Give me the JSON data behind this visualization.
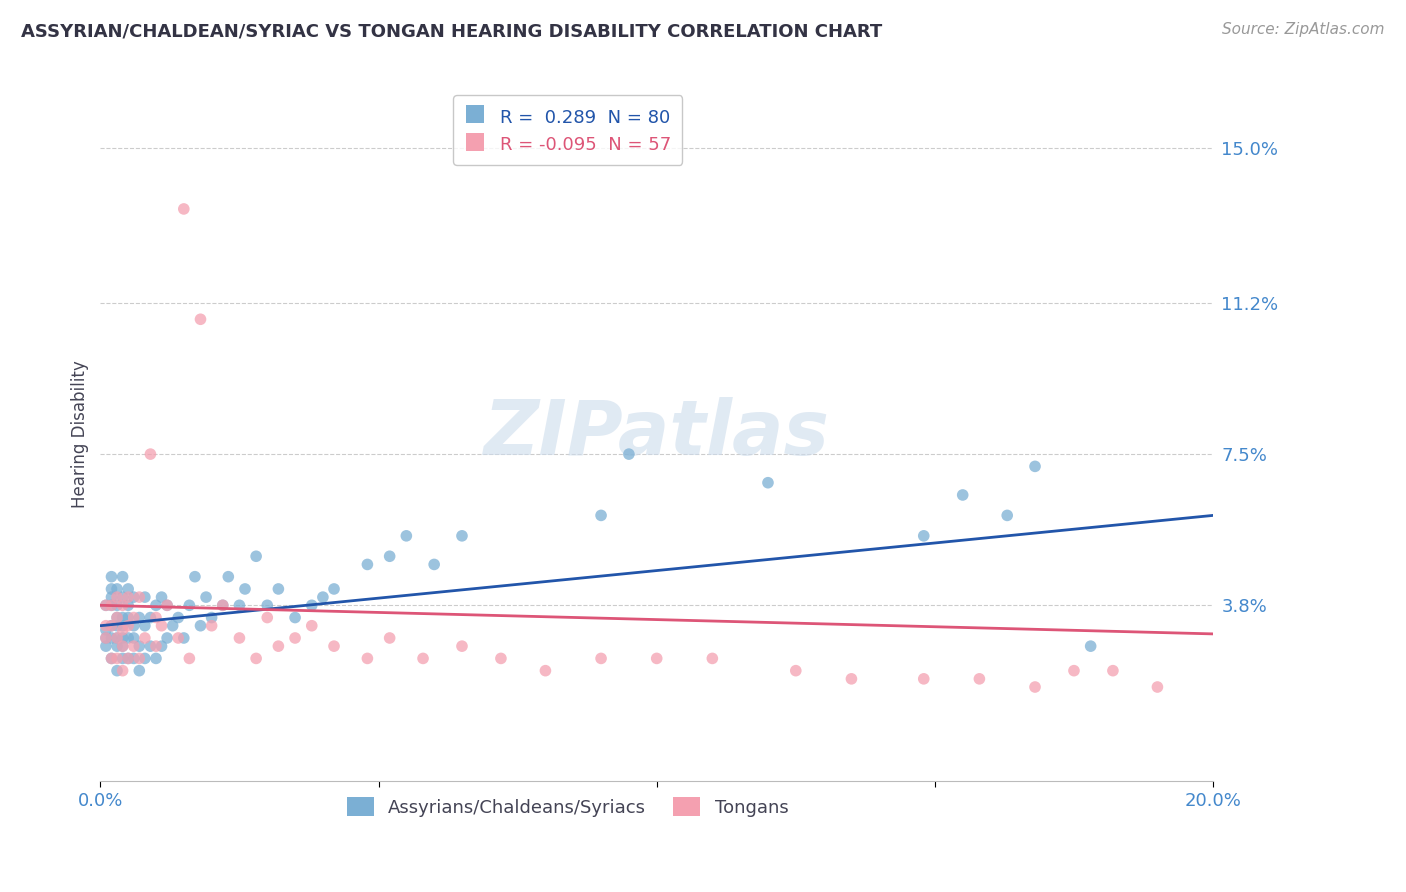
{
  "title": "ASSYRIAN/CHALDEAN/SYRIAC VS TONGAN HEARING DISABILITY CORRELATION CHART",
  "source": "Source: ZipAtlas.com",
  "ylabel": "Hearing Disability",
  "xlim": [
    0.0,
    0.2
  ],
  "ylim": [
    -0.005,
    0.165
  ],
  "ytick_vals": [
    0.038,
    0.075,
    0.112,
    0.15
  ],
  "ytick_labels": [
    "3.8%",
    "7.5%",
    "11.2%",
    "15.0%"
  ],
  "xtick_vals": [
    0.0,
    0.05,
    0.1,
    0.15,
    0.2
  ],
  "xtick_labels": [
    "0.0%",
    "",
    "",
    "",
    "20.0%"
  ],
  "r_assyrian": 0.289,
  "n_assyrian": 80,
  "r_tongan": -0.095,
  "n_tongan": 57,
  "blue_color": "#7bafd4",
  "blue_line_color": "#2255aa",
  "pink_color": "#f4a0b0",
  "pink_line_color": "#dd5577",
  "legend_label_1": "Assyrians/Chaldeans/Syriacs",
  "legend_label_2": "Tongans",
  "watermark": "ZIPatlas",
  "background_color": "#ffffff",
  "grid_color": "#cccccc",
  "title_color": "#333344",
  "axis_label_color": "#444455",
  "tick_label_color": "#4488cc",
  "blue_trend_start": 0.033,
  "blue_trend_end": 0.06,
  "pink_trend_start": 0.038,
  "pink_trend_end": 0.031,
  "assyrian_x": [
    0.001,
    0.001,
    0.001,
    0.001,
    0.002,
    0.002,
    0.002,
    0.002,
    0.002,
    0.002,
    0.002,
    0.003,
    0.003,
    0.003,
    0.003,
    0.003,
    0.003,
    0.003,
    0.004,
    0.004,
    0.004,
    0.004,
    0.004,
    0.004,
    0.004,
    0.005,
    0.005,
    0.005,
    0.005,
    0.005,
    0.006,
    0.006,
    0.006,
    0.006,
    0.007,
    0.007,
    0.007,
    0.008,
    0.008,
    0.008,
    0.009,
    0.009,
    0.01,
    0.01,
    0.011,
    0.011,
    0.012,
    0.012,
    0.013,
    0.014,
    0.015,
    0.016,
    0.017,
    0.018,
    0.019,
    0.02,
    0.022,
    0.023,
    0.025,
    0.026,
    0.028,
    0.03,
    0.032,
    0.035,
    0.038,
    0.04,
    0.042,
    0.048,
    0.052,
    0.055,
    0.06,
    0.065,
    0.09,
    0.095,
    0.12,
    0.148,
    0.155,
    0.163,
    0.168,
    0.178
  ],
  "assyrian_y": [
    0.03,
    0.028,
    0.032,
    0.038,
    0.025,
    0.03,
    0.033,
    0.038,
    0.04,
    0.042,
    0.045,
    0.022,
    0.028,
    0.03,
    0.033,
    0.035,
    0.038,
    0.042,
    0.025,
    0.028,
    0.03,
    0.033,
    0.035,
    0.04,
    0.045,
    0.025,
    0.03,
    0.035,
    0.038,
    0.042,
    0.025,
    0.03,
    0.033,
    0.04,
    0.022,
    0.028,
    0.035,
    0.025,
    0.033,
    0.04,
    0.028,
    0.035,
    0.025,
    0.038,
    0.028,
    0.04,
    0.03,
    0.038,
    0.033,
    0.035,
    0.03,
    0.038,
    0.045,
    0.033,
    0.04,
    0.035,
    0.038,
    0.045,
    0.038,
    0.042,
    0.05,
    0.038,
    0.042,
    0.035,
    0.038,
    0.04,
    0.042,
    0.048,
    0.05,
    0.055,
    0.048,
    0.055,
    0.06,
    0.075,
    0.068,
    0.055,
    0.065,
    0.06,
    0.072,
    0.028
  ],
  "tongan_x": [
    0.001,
    0.001,
    0.001,
    0.002,
    0.002,
    0.002,
    0.003,
    0.003,
    0.003,
    0.003,
    0.004,
    0.004,
    0.004,
    0.004,
    0.005,
    0.005,
    0.005,
    0.006,
    0.006,
    0.007,
    0.007,
    0.008,
    0.009,
    0.01,
    0.01,
    0.011,
    0.012,
    0.014,
    0.015,
    0.016,
    0.018,
    0.02,
    0.022,
    0.025,
    0.028,
    0.03,
    0.032,
    0.035,
    0.038,
    0.042,
    0.048,
    0.052,
    0.058,
    0.065,
    0.072,
    0.08,
    0.09,
    0.1,
    0.11,
    0.125,
    0.135,
    0.148,
    0.158,
    0.168,
    0.175,
    0.182,
    0.19
  ],
  "tongan_y": [
    0.03,
    0.033,
    0.038,
    0.025,
    0.033,
    0.038,
    0.025,
    0.03,
    0.035,
    0.04,
    0.022,
    0.028,
    0.032,
    0.038,
    0.025,
    0.033,
    0.04,
    0.028,
    0.035,
    0.025,
    0.04,
    0.03,
    0.075,
    0.028,
    0.035,
    0.033,
    0.038,
    0.03,
    0.135,
    0.025,
    0.108,
    0.033,
    0.038,
    0.03,
    0.025,
    0.035,
    0.028,
    0.03,
    0.033,
    0.028,
    0.025,
    0.03,
    0.025,
    0.028,
    0.025,
    0.022,
    0.025,
    0.025,
    0.025,
    0.022,
    0.02,
    0.02,
    0.02,
    0.018,
    0.022,
    0.022,
    0.018
  ]
}
